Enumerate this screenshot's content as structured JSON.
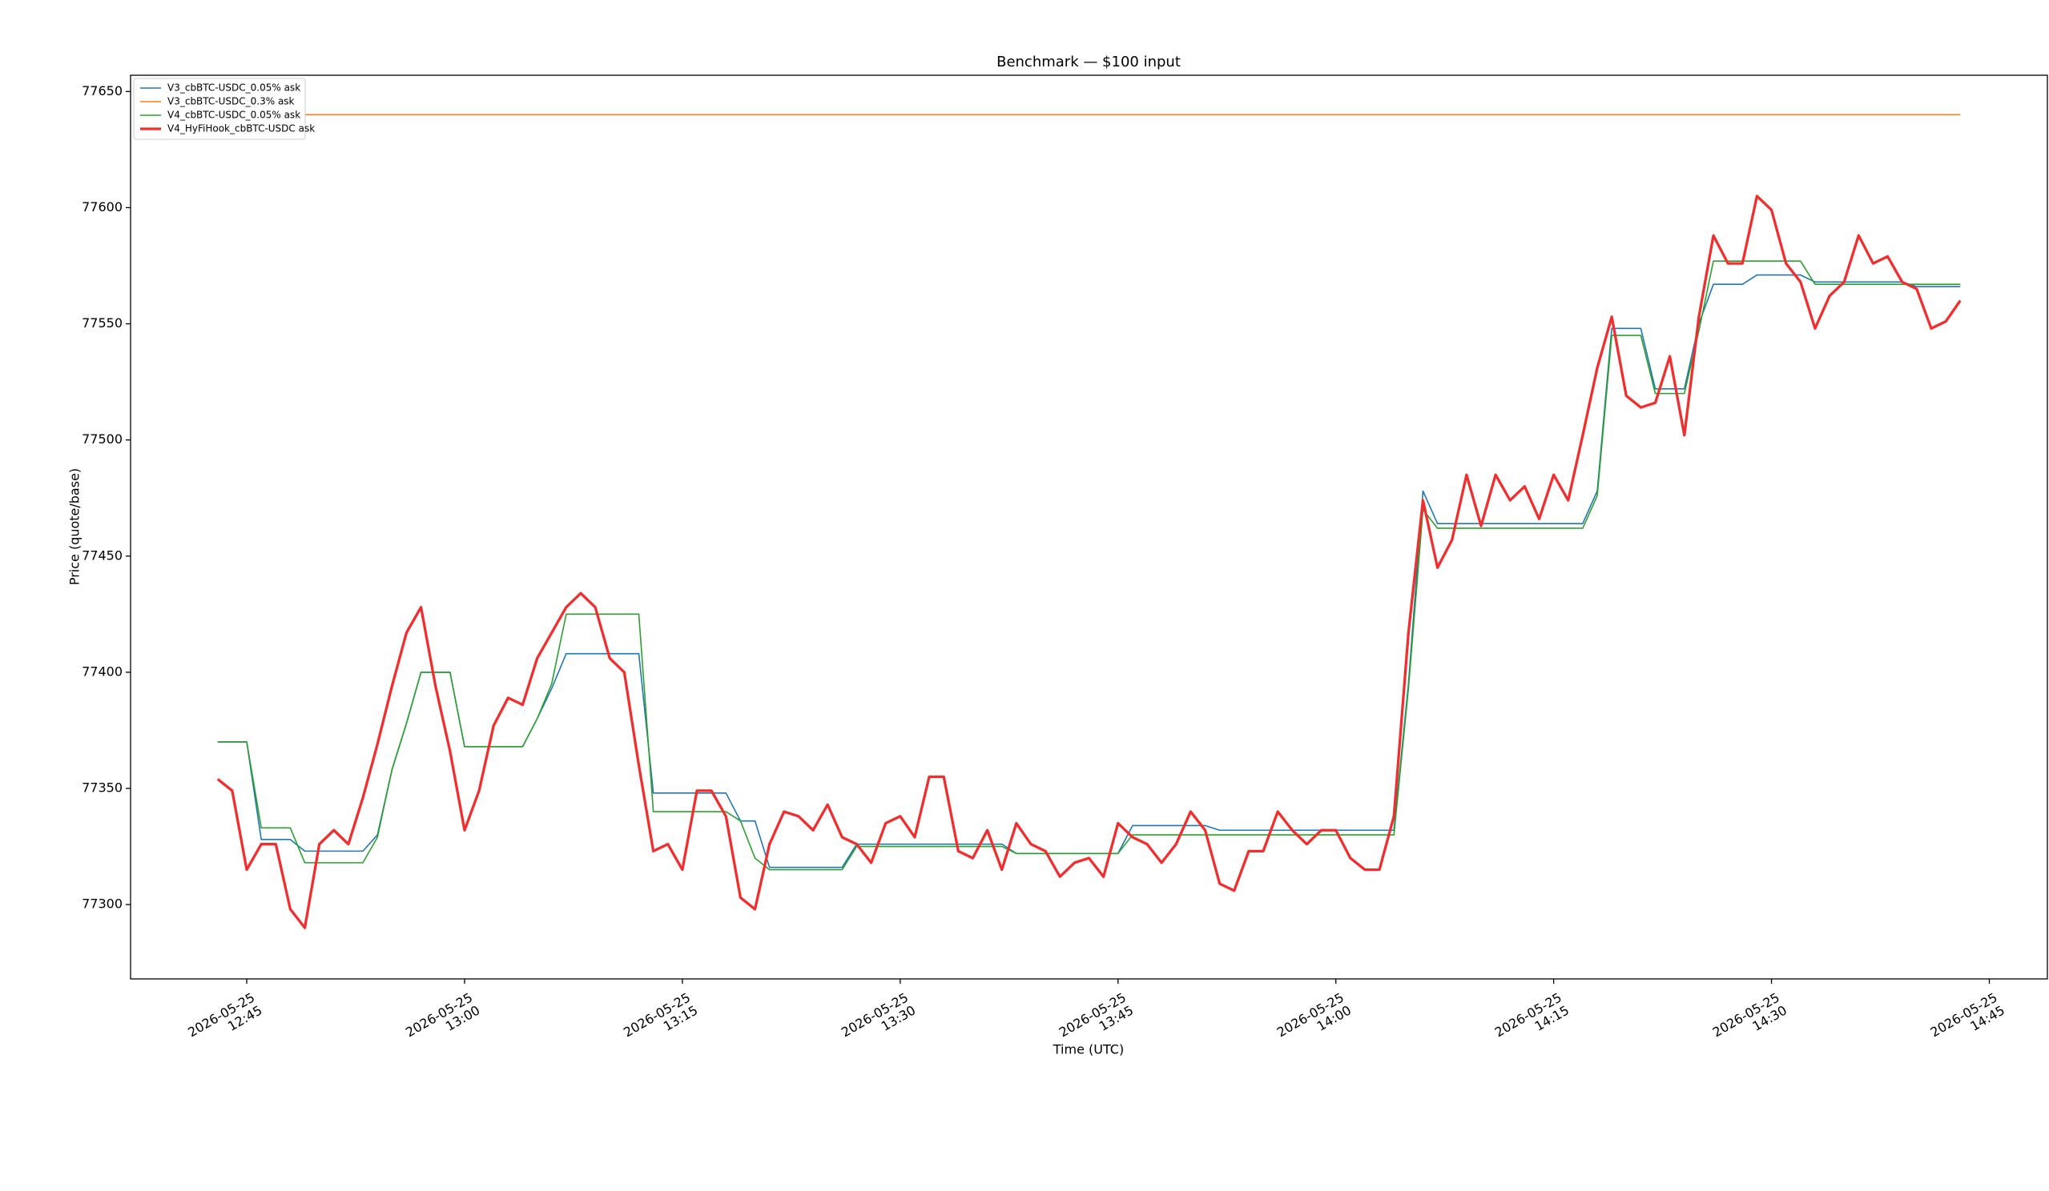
{
  "chart_data": {
    "type": "line",
    "title": "Benchmark — $100 input",
    "xlabel": "Time (UTC)",
    "ylabel": "Price (quote/base)",
    "xlim": [
      "2026-05-25 12:37",
      "2026-05-25 14:49"
    ],
    "xticks": [
      "2026-05-25 12:45",
      "2026-05-25 13:00",
      "2026-05-25 13:15",
      "2026-05-25 13:30",
      "2026-05-25 13:45",
      "2026-05-25 14:00",
      "2026-05-25 14:15",
      "2026-05-25 14:30",
      "2026-05-25 14:45"
    ],
    "ylim": [
      77268,
      77657
    ],
    "yticks": [
      77300,
      77350,
      77400,
      77450,
      77500,
      77550,
      77600,
      77650
    ],
    "grid": false,
    "legend": "upper left",
    "x": [
      "2026-05-25 12:43",
      "2026-05-25 12:44",
      "2026-05-25 12:45",
      "2026-05-25 12:46",
      "2026-05-25 12:47",
      "2026-05-25 12:48",
      "2026-05-25 12:49",
      "2026-05-25 12:50",
      "2026-05-25 12:51",
      "2026-05-25 12:52",
      "2026-05-25 12:53",
      "2026-05-25 12:54",
      "2026-05-25 12:55",
      "2026-05-25 12:56",
      "2026-05-25 12:57",
      "2026-05-25 12:58",
      "2026-05-25 12:59",
      "2026-05-25 13:00",
      "2026-05-25 13:01",
      "2026-05-25 13:02",
      "2026-05-25 13:03",
      "2026-05-25 13:04",
      "2026-05-25 13:05",
      "2026-05-25 13:06",
      "2026-05-25 13:07",
      "2026-05-25 13:08",
      "2026-05-25 13:09",
      "2026-05-25 13:10",
      "2026-05-25 13:11",
      "2026-05-25 13:12",
      "2026-05-25 13:13",
      "2026-05-25 13:14",
      "2026-05-25 13:15",
      "2026-05-25 13:16",
      "2026-05-25 13:17",
      "2026-05-25 13:18",
      "2026-05-25 13:19",
      "2026-05-25 13:20",
      "2026-05-25 13:21",
      "2026-05-25 13:22",
      "2026-05-25 13:23",
      "2026-05-25 13:24",
      "2026-05-25 13:25",
      "2026-05-25 13:26",
      "2026-05-25 13:27",
      "2026-05-25 13:28",
      "2026-05-25 13:29",
      "2026-05-25 13:30",
      "2026-05-25 13:31",
      "2026-05-25 13:32",
      "2026-05-25 13:33",
      "2026-05-25 13:34",
      "2026-05-25 13:35",
      "2026-05-25 13:36",
      "2026-05-25 13:37",
      "2026-05-25 13:38",
      "2026-05-25 13:39",
      "2026-05-25 13:40",
      "2026-05-25 13:41",
      "2026-05-25 13:42",
      "2026-05-25 13:43",
      "2026-05-25 13:44",
      "2026-05-25 13:45",
      "2026-05-25 13:46",
      "2026-05-25 13:47",
      "2026-05-25 13:48",
      "2026-05-25 13:49",
      "2026-05-25 13:50",
      "2026-05-25 13:51",
      "2026-05-25 13:52",
      "2026-05-25 13:53",
      "2026-05-25 13:54",
      "2026-05-25 13:55",
      "2026-05-25 13:56",
      "2026-05-25 13:57",
      "2026-05-25 13:58",
      "2026-05-25 13:59",
      "2026-05-25 14:00",
      "2026-05-25 14:01",
      "2026-05-25 14:02",
      "2026-05-25 14:03",
      "2026-05-25 14:04",
      "2026-05-25 14:05",
      "2026-05-25 14:06",
      "2026-05-25 14:07",
      "2026-05-25 14:08",
      "2026-05-25 14:09",
      "2026-05-25 14:10",
      "2026-05-25 14:11",
      "2026-05-25 14:12",
      "2026-05-25 14:13",
      "2026-05-25 14:14",
      "2026-05-25 14:15",
      "2026-05-25 14:16",
      "2026-05-25 14:17",
      "2026-05-25 14:18",
      "2026-05-25 14:19",
      "2026-05-25 14:20",
      "2026-05-25 14:21",
      "2026-05-25 14:22",
      "2026-05-25 14:23",
      "2026-05-25 14:24",
      "2026-05-25 14:25",
      "2026-05-25 14:26",
      "2026-05-25 14:27",
      "2026-05-25 14:28",
      "2026-05-25 14:29",
      "2026-05-25 14:30",
      "2026-05-25 14:31",
      "2026-05-25 14:32",
      "2026-05-25 14:33",
      "2026-05-25 14:34",
      "2026-05-25 14:35",
      "2026-05-25 14:36",
      "2026-05-25 14:37",
      "2026-05-25 14:38",
      "2026-05-25 14:39",
      "2026-05-25 14:40",
      "2026-05-25 14:41",
      "2026-05-25 14:42",
      "2026-05-25 14:43"
    ],
    "series": [
      {
        "name": "V3_cbBTC-USDC_0.05% ask",
        "color": "#1f77b4",
        "width": 1.6,
        "values": [
          77370,
          77370,
          77370,
          77328,
          77328,
          77328,
          77323,
          77323,
          77323,
          77323,
          77323,
          77330,
          77358,
          77378,
          77400,
          77400,
          77400,
          77368,
          77368,
          77368,
          77368,
          77368,
          77380,
          77393,
          77408,
          77408,
          77408,
          77408,
          77408,
          77408,
          77348,
          77348,
          77348,
          77348,
          77348,
          77348,
          77336,
          77336,
          77316,
          77316,
          77316,
          77316,
          77316,
          77316,
          77326,
          77326,
          77326,
          77326,
          77326,
          77326,
          77326,
          77326,
          77326,
          77326,
          77326,
          77322,
          77322,
          77322,
          77322,
          77322,
          77322,
          77322,
          77322,
          77334,
          77334,
          77334,
          77334,
          77334,
          77334,
          77332,
          77332,
          77332,
          77332,
          77332,
          77332,
          77332,
          77332,
          77332,
          77332,
          77332,
          77332,
          77332,
          77395,
          77478,
          77464,
          77464,
          77464,
          77464,
          77464,
          77464,
          77464,
          77464,
          77464,
          77464,
          77464,
          77478,
          77548,
          77548,
          77548,
          77522,
          77522,
          77522,
          77550,
          77567,
          77567,
          77567,
          77571,
          77571,
          77571,
          77571,
          77568,
          77568,
          77568,
          77568,
          77568,
          77568,
          77568,
          77566,
          77566,
          77566,
          77566
        ]
      },
      {
        "name": "V3_cbBTC-USDC_0.3% ask",
        "color": "#ff7f0e",
        "width": 1.6,
        "values": [
          77640,
          77640,
          77640,
          77640,
          77640,
          77640,
          77640,
          77640,
          77640,
          77640,
          77640,
          77640,
          77640,
          77640,
          77640,
          77640,
          77640,
          77640,
          77640,
          77640,
          77640,
          77640,
          77640,
          77640,
          77640,
          77640,
          77640,
          77640,
          77640,
          77640,
          77640,
          77640,
          77640,
          77640,
          77640,
          77640,
          77640,
          77640,
          77640,
          77640,
          77640,
          77640,
          77640,
          77640,
          77640,
          77640,
          77640,
          77640,
          77640,
          77640,
          77640,
          77640,
          77640,
          77640,
          77640,
          77640,
          77640,
          77640,
          77640,
          77640,
          77640,
          77640,
          77640,
          77640,
          77640,
          77640,
          77640,
          77640,
          77640,
          77640,
          77640,
          77640,
          77640,
          77640,
          77640,
          77640,
          77640,
          77640,
          77640,
          77640,
          77640,
          77640,
          77640,
          77640,
          77640,
          77640,
          77640,
          77640,
          77640,
          77640,
          77640,
          77640,
          77640,
          77640,
          77640,
          77640,
          77640,
          77640,
          77640,
          77640,
          77640,
          77640,
          77640,
          77640,
          77640,
          77640,
          77640,
          77640,
          77640,
          77640,
          77640,
          77640,
          77640,
          77640,
          77640,
          77640,
          77640,
          77640,
          77640,
          77640,
          77640
        ]
      },
      {
        "name": "V4_cbBTC-USDC_0.05% ask",
        "color": "#2ca02c",
        "width": 1.6,
        "values": [
          77370,
          77370,
          77370,
          77333,
          77333,
          77333,
          77318,
          77318,
          77318,
          77318,
          77318,
          77329,
          77358,
          77378,
          77400,
          77400,
          77400,
          77368,
          77368,
          77368,
          77368,
          77368,
          77380,
          77395,
          77425,
          77425,
          77425,
          77425,
          77425,
          77425,
          77340,
          77340,
          77340,
          77340,
          77340,
          77340,
          77336,
          77320,
          77315,
          77315,
          77315,
          77315,
          77315,
          77315,
          77325,
          77325,
          77325,
          77325,
          77325,
          77325,
          77325,
          77325,
          77325,
          77325,
          77325,
          77322,
          77322,
          77322,
          77322,
          77322,
          77322,
          77322,
          77322,
          77330,
          77330,
          77330,
          77330,
          77330,
          77330,
          77330,
          77330,
          77330,
          77330,
          77330,
          77330,
          77330,
          77330,
          77330,
          77330,
          77330,
          77330,
          77330,
          77393,
          77470,
          77462,
          77462,
          77462,
          77462,
          77462,
          77462,
          77462,
          77462,
          77462,
          77462,
          77462,
          77476,
          77545,
          77545,
          77545,
          77520,
          77520,
          77520,
          77547,
          77577,
          77577,
          77577,
          77577,
          77577,
          77577,
          77577,
          77567,
          77567,
          77567,
          77567,
          77567,
          77567,
          77567,
          77567,
          77567,
          77567,
          77567
        ]
      },
      {
        "name": "V4_HyFiHook_cbBTC-USDC ask",
        "color": "#f22d2d",
        "width": 3.3,
        "values": [
          77354,
          77349,
          77315,
          77326,
          77326,
          77298,
          77290,
          77326,
          77332,
          77326,
          77346,
          77369,
          77394,
          77417,
          77428,
          77394,
          77366,
          77332,
          77349,
          77377,
          77389,
          77386,
          77406,
          77417,
          77428,
          77434,
          77428,
          77406,
          77400,
          77360,
          77323,
          77326,
          77315,
          77349,
          77349,
          77338,
          77303,
          77298,
          77326,
          77340,
          77338,
          77332,
          77343,
          77329,
          77326,
          77318,
          77335,
          77338,
          77329,
          77355,
          77355,
          77323,
          77320,
          77332,
          77315,
          77335,
          77326,
          77323,
          77312,
          77318,
          77320,
          77312,
          77335,
          77329,
          77326,
          77318,
          77326,
          77340,
          77332,
          77309,
          77306,
          77323,
          77323,
          77340,
          77332,
          77326,
          77332,
          77332,
          77320,
          77315,
          77315,
          77338,
          77417,
          77474,
          77445,
          77457,
          77485,
          77463,
          77485,
          77474,
          77480,
          77466,
          77485,
          77474,
          77502,
          77531,
          77553,
          77519,
          77514,
          77516,
          77536,
          77502,
          77553,
          77588,
          77576,
          77576,
          77605,
          77599,
          77576,
          77568,
          77548,
          77562,
          77568,
          77588,
          77576,
          77579,
          77568,
          77565,
          77548,
          77551,
          77560
        ]
      }
    ]
  }
}
